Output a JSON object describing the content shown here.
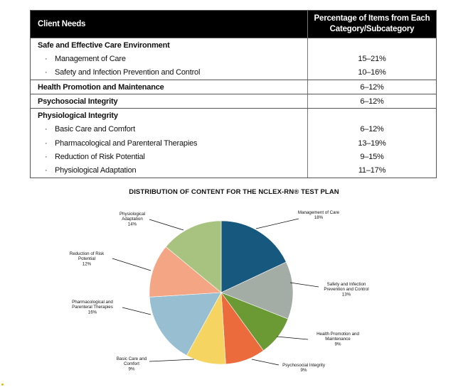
{
  "table": {
    "header": {
      "col1": "Client Needs",
      "col2_line1": "Percentage of Items from Each",
      "col2_line2": "Category/Subcategory"
    },
    "groups": [
      {
        "title": "Safe and Effective Care Environment",
        "value": "",
        "items": [
          {
            "label": "Management of Care",
            "value": "15–21%"
          },
          {
            "label": "Safety and Infection Prevention and Control",
            "value": "10–16%"
          }
        ]
      },
      {
        "title": "Health Promotion and Maintenance",
        "value": "6–12%",
        "items": []
      },
      {
        "title": "Psychosocial Integrity",
        "value": "6–12%",
        "items": []
      },
      {
        "title": "Physiological Integrity",
        "value": "",
        "items": [
          {
            "label": "Basic Care and Comfort",
            "value": "6–12%"
          },
          {
            "label": "Pharmacological and Parenteral Therapies",
            "value": "13–19%"
          },
          {
            "label": "Reduction of Risk Potential",
            "value": "9–15%"
          },
          {
            "label": "Physiological Adaptation",
            "value": "11–17%"
          }
        ]
      }
    ]
  },
  "chart_data": {
    "type": "pie",
    "title": "DISTRIBUTION OF CONTENT FOR THE NCLEX-RN® TEST PLAN",
    "slices": [
      {
        "name": "Management of Care",
        "label_lines": [
          "Management of Care"
        ],
        "value": 18,
        "pct": "18%",
        "color": "#17587f"
      },
      {
        "name": "Safety and Infection Prevention and Control",
        "label_lines": [
          "Safety and Infection",
          "Prevention and Control"
        ],
        "value": 13,
        "pct": "13%",
        "color": "#a4aca6"
      },
      {
        "name": "Health Promotion and Maintenance",
        "label_lines": [
          "Health Promotion and",
          "Maintenance"
        ],
        "value": 9,
        "pct": "9%",
        "color": "#6b9a34"
      },
      {
        "name": "Psychosocial Integrity",
        "label_lines": [
          "Psychosocial Integrity"
        ],
        "value": 9,
        "pct": "9%",
        "color": "#ec6b3c"
      },
      {
        "name": "Basic Care and Comfort",
        "label_lines": [
          "Basic Care and",
          "Comfort"
        ],
        "value": 9,
        "pct": "9%",
        "color": "#f5d461"
      },
      {
        "name": "Pharmacological and Parenteral Therapies",
        "label_lines": [
          "Pharmacological and",
          "Parenteral Therapies"
        ],
        "value": 16,
        "pct": "16%",
        "color": "#97bfd1"
      },
      {
        "name": "Reduction of Risk Potential",
        "label_lines": [
          "Reduction of Risk",
          "Potential"
        ],
        "value": 12,
        "pct": "12%",
        "color": "#f3a584"
      },
      {
        "name": "Physiological Adaptation",
        "label_lines": [
          "Physiological",
          "Adaptation"
        ],
        "value": 14,
        "pct": "14%",
        "color": "#a8c27f"
      }
    ]
  }
}
